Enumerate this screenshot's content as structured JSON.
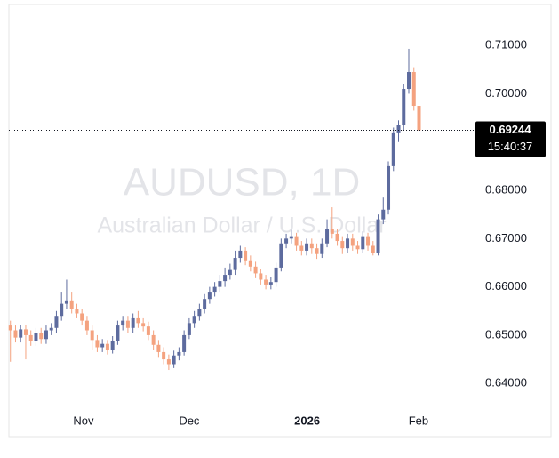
{
  "chart_data": {
    "type": "candlestick",
    "title": "AUDUSD, 1D",
    "subtitle": "Australian Dollar / U.S. Dollar",
    "x": [
      0,
      1,
      2,
      3,
      4,
      5,
      6,
      7,
      8,
      9,
      10,
      11,
      12,
      13,
      14,
      15,
      16,
      17,
      18,
      19,
      20,
      21,
      22,
      23,
      24,
      25,
      26,
      27,
      28,
      29,
      30,
      31,
      32,
      33,
      34,
      35,
      36,
      37,
      38,
      39,
      40,
      41,
      42,
      43,
      44,
      45,
      46,
      47,
      48,
      49,
      50,
      51,
      52,
      53,
      54,
      55,
      56,
      57,
      58,
      59,
      60,
      61,
      62,
      63,
      64,
      65,
      66,
      67,
      68,
      69,
      70,
      71,
      72,
      73,
      74,
      75,
      76,
      77,
      78,
      79,
      80
    ],
    "open": [
      0.652,
      0.651,
      0.6495,
      0.6512,
      0.65,
      0.6488,
      0.6505,
      0.6492,
      0.651,
      0.6515,
      0.654,
      0.6565,
      0.6572,
      0.6555,
      0.6545,
      0.653,
      0.651,
      0.649,
      0.6475,
      0.6482,
      0.647,
      0.6488,
      0.652,
      0.653,
      0.6515,
      0.6535,
      0.6525,
      0.6518,
      0.65,
      0.648,
      0.6465,
      0.645,
      0.644,
      0.6458,
      0.6465,
      0.65,
      0.6525,
      0.654,
      0.6555,
      0.6575,
      0.659,
      0.66,
      0.6612,
      0.6625,
      0.6635,
      0.666,
      0.6675,
      0.6655,
      0.6642,
      0.6628,
      0.6615,
      0.6605,
      0.661,
      0.664,
      0.669,
      0.67,
      0.6705,
      0.6685,
      0.6675,
      0.669,
      0.668,
      0.6668,
      0.669,
      0.672,
      0.671,
      0.6695,
      0.668,
      0.67,
      0.6685,
      0.6678,
      0.6705,
      0.6685,
      0.667,
      0.674,
      0.676,
      0.685,
      0.692,
      0.6935,
      0.701,
      0.7045,
      0.6975
    ],
    "high": [
      0.653,
      0.652,
      0.6522,
      0.6522,
      0.651,
      0.6515,
      0.6515,
      0.652,
      0.6525,
      0.655,
      0.659,
      0.6615,
      0.659,
      0.6565,
      0.6555,
      0.654,
      0.652,
      0.65,
      0.6492,
      0.649,
      0.6498,
      0.653,
      0.654,
      0.654,
      0.6545,
      0.655,
      0.6535,
      0.6528,
      0.651,
      0.649,
      0.6475,
      0.646,
      0.6468,
      0.6475,
      0.651,
      0.6535,
      0.655,
      0.6565,
      0.6585,
      0.66,
      0.661,
      0.6625,
      0.664,
      0.6648,
      0.6675,
      0.6685,
      0.6682,
      0.6665,
      0.6652,
      0.6638,
      0.6625,
      0.662,
      0.665,
      0.67,
      0.671,
      0.6718,
      0.6712,
      0.6695,
      0.67,
      0.67,
      0.669,
      0.67,
      0.674,
      0.6765,
      0.672,
      0.6705,
      0.671,
      0.671,
      0.6695,
      0.6715,
      0.6712,
      0.6695,
      0.675,
      0.6785,
      0.686,
      0.693,
      0.6945,
      0.702,
      0.7093,
      0.7055,
      0.6985
    ],
    "low": [
      0.6445,
      0.6485,
      0.6485,
      0.645,
      0.6478,
      0.6478,
      0.6482,
      0.6482,
      0.65,
      0.6505,
      0.653,
      0.6555,
      0.6545,
      0.6535,
      0.652,
      0.65,
      0.647,
      0.6465,
      0.6465,
      0.646,
      0.6462,
      0.648,
      0.651,
      0.6505,
      0.6505,
      0.6515,
      0.6508,
      0.649,
      0.647,
      0.6455,
      0.644,
      0.6428,
      0.6432,
      0.6448,
      0.6458,
      0.6492,
      0.6515,
      0.653,
      0.6545,
      0.6565,
      0.658,
      0.659,
      0.66,
      0.6615,
      0.6625,
      0.665,
      0.6645,
      0.6632,
      0.6618,
      0.6605,
      0.6595,
      0.6595,
      0.66,
      0.6632,
      0.668,
      0.669,
      0.6675,
      0.6665,
      0.6665,
      0.6668,
      0.6658,
      0.666,
      0.6682,
      0.67,
      0.6685,
      0.6668,
      0.667,
      0.6675,
      0.6668,
      0.667,
      0.6675,
      0.6665,
      0.6665,
      0.673,
      0.675,
      0.684,
      0.69,
      0.6925,
      0.7,
      0.6965,
      0.692
    ],
    "close": [
      0.651,
      0.6495,
      0.6512,
      0.65,
      0.6488,
      0.6505,
      0.6492,
      0.651,
      0.6515,
      0.654,
      0.6565,
      0.6572,
      0.6555,
      0.6545,
      0.653,
      0.651,
      0.649,
      0.6475,
      0.6482,
      0.647,
      0.6488,
      0.652,
      0.653,
      0.6515,
      0.6535,
      0.6525,
      0.6518,
      0.65,
      0.648,
      0.6465,
      0.645,
      0.644,
      0.6458,
      0.6465,
      0.65,
      0.6525,
      0.654,
      0.6555,
      0.6575,
      0.659,
      0.66,
      0.6612,
      0.6625,
      0.6635,
      0.666,
      0.6675,
      0.6655,
      0.6642,
      0.6628,
      0.6615,
      0.6605,
      0.661,
      0.664,
      0.669,
      0.67,
      0.6705,
      0.6685,
      0.6675,
      0.669,
      0.668,
      0.6668,
      0.669,
      0.672,
      0.671,
      0.6695,
      0.668,
      0.67,
      0.6685,
      0.6678,
      0.6705,
      0.6685,
      0.667,
      0.674,
      0.676,
      0.685,
      0.692,
      0.6935,
      0.701,
      0.7045,
      0.6975,
      0.69244
    ],
    "up_color": "#5d6b9e",
    "down_color": "#f4a27f",
    "xlim": [
      -0.3,
      90.7
    ],
    "xticks": [
      {
        "value": 14.3,
        "label": "Nov"
      },
      {
        "value": 35,
        "label": "Dec"
      },
      {
        "value": 58.1,
        "label": "2026"
      },
      {
        "value": 79.9,
        "label": "Feb"
      }
    ],
    "ylim": [
      0.6347,
      0.7185
    ],
    "yticks": [
      {
        "value": 0.64,
        "label": "0.64000"
      },
      {
        "value": 0.65,
        "label": "0.65000"
      },
      {
        "value": 0.66,
        "label": "0.66000"
      },
      {
        "value": 0.67,
        "label": "0.67000"
      },
      {
        "value": 0.68,
        "label": "0.68000"
      },
      {
        "value": 0.7,
        "label": "0.70000"
      },
      {
        "value": 0.71,
        "label": "0.71000"
      }
    ],
    "last_price": 0.69244,
    "countdown": "15:40:37",
    "grid": false
  }
}
